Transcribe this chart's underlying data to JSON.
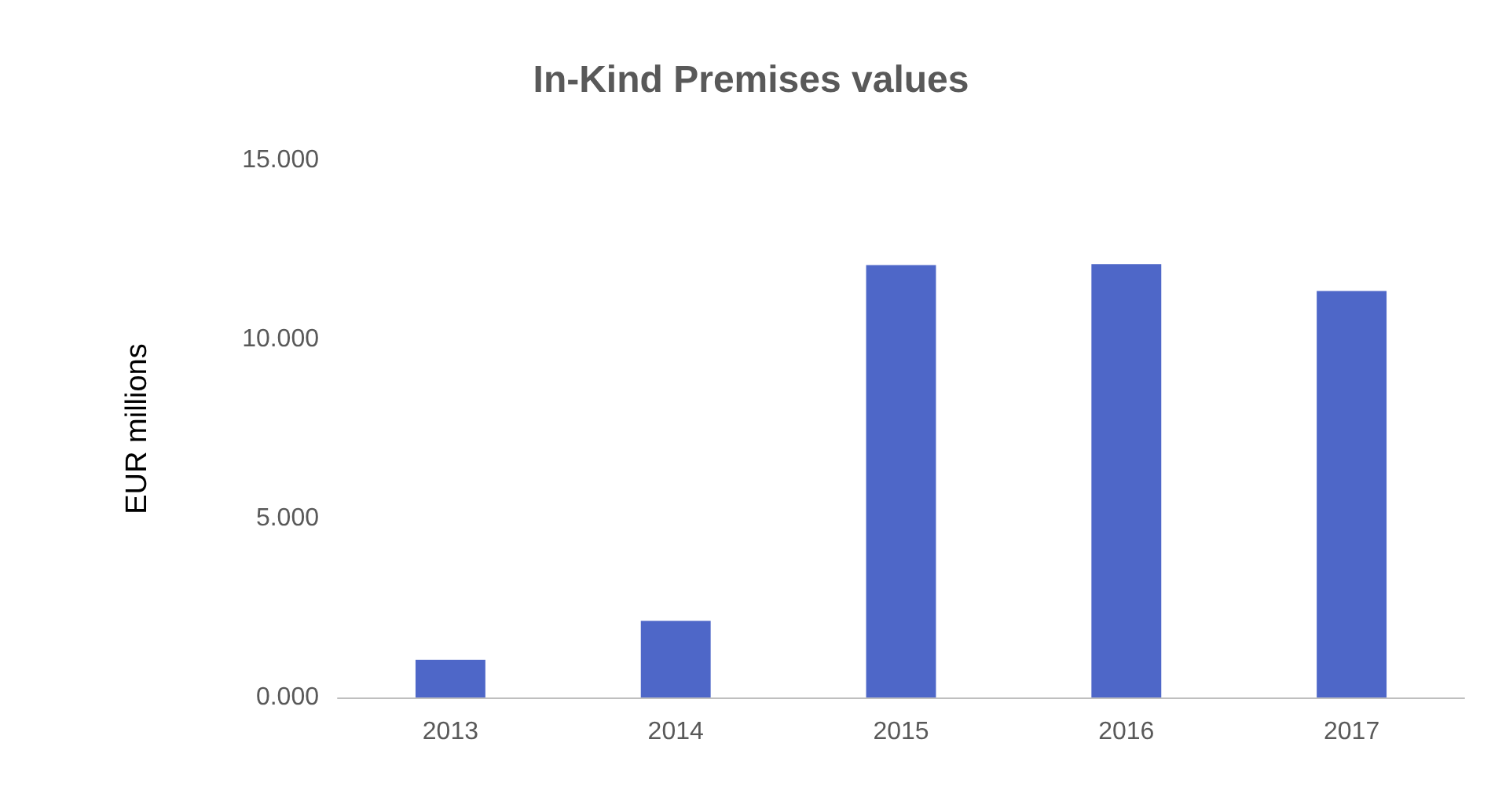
{
  "chart_data": {
    "type": "bar",
    "title": "In-Kind Premises values",
    "ylabel": "EUR millions",
    "categories": [
      "2013",
      "2014",
      "2015",
      "2016",
      "2017"
    ],
    "values": [
      1.05,
      2.14,
      12.07,
      12.1,
      11.35
    ],
    "color": "#4e67c8",
    "ylim": [
      0,
      15
    ],
    "yticks": [
      {
        "value": 0,
        "label": "0.000"
      },
      {
        "value": 5,
        "label": "5.000"
      },
      {
        "value": 10,
        "label": "10.000"
      },
      {
        "value": 15,
        "label": "15.000"
      }
    ],
    "grid": false
  }
}
